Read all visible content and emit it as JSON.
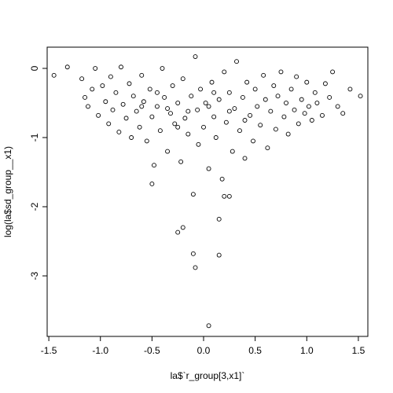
{
  "chart_data": {
    "type": "scatter",
    "xlabel": "la$`r_group[3,x1]`",
    "ylabel": "log(la$sd_group__x1)",
    "xlim": [
      -1.516,
      1.592
    ],
    "ylim": [
      -3.875,
      0.307
    ],
    "xticks": [
      -1.5,
      {
        "value": -1,
        "label": "-1.0"
      },
      -0.5,
      {
        "value": 0,
        "label": "0.0"
      },
      0.5,
      {
        "value": 1,
        "label": "1.0"
      },
      1.5
    ],
    "yticks": [
      0,
      -1,
      -2,
      -3
    ],
    "color": "#000000",
    "x": [
      -1.45,
      -1.32,
      -1.18,
      -1.15,
      -1.12,
      -1.08,
      -1.05,
      -1.02,
      -0.98,
      -0.95,
      -0.92,
      -0.9,
      -0.88,
      -0.85,
      -0.82,
      -0.8,
      -0.78,
      -0.75,
      -0.72,
      -0.7,
      -0.68,
      -0.65,
      -0.62,
      -0.6,
      -0.58,
      -0.55,
      -0.52,
      -0.5,
      -0.5,
      -0.48,
      -0.45,
      -0.42,
      -0.4,
      -0.38,
      -0.35,
      -0.32,
      -0.3,
      -0.28,
      -0.25,
      -0.25,
      -0.22,
      -0.2,
      -0.2,
      -0.18,
      -0.15,
      -0.12,
      -0.1,
      -0.1,
      -0.08,
      -0.08,
      -0.06,
      -0.05,
      -0.03,
      0,
      0.02,
      0.05,
      0.05,
      0.08,
      0.1,
      0.12,
      0.15,
      0.15,
      0.15,
      0.18,
      0.2,
      0.2,
      0.22,
      0.25,
      0.25,
      0.28,
      0.3,
      0.32,
      0.35,
      0.38,
      0.4,
      0.42,
      0.45,
      0.48,
      0.5,
      0.52,
      0.55,
      0.58,
      0.6,
      0.62,
      0.65,
      0.68,
      0.7,
      0.72,
      0.75,
      0.78,
      0.8,
      0.82,
      0.85,
      0.88,
      0.9,
      0.92,
      0.95,
      0.98,
      1,
      1.02,
      1.05,
      1.08,
      1.1,
      1.15,
      1.18,
      1.22,
      1.25,
      1.3,
      1.35,
      1.42,
      1.52,
      -0.35,
      -0.15,
      0.05,
      0.25,
      -0.45,
      0.1,
      -0.25,
      0.4,
      -0.6
    ],
    "y": [
      -0.1,
      0.02,
      -0.15,
      -0.42,
      -0.55,
      -0.3,
      0,
      -0.68,
      -0.25,
      -0.48,
      -0.8,
      -0.12,
      -0.6,
      -0.35,
      -0.92,
      0.02,
      -0.52,
      -0.72,
      -0.22,
      -1,
      -0.4,
      -0.62,
      -0.85,
      -0.1,
      -0.48,
      -1.05,
      -0.3,
      -0.7,
      -1.67,
      -1.4,
      -0.55,
      -0.9,
      0,
      -0.42,
      -1.2,
      -0.65,
      -0.25,
      -0.8,
      -2.37,
      -0.5,
      -1.35,
      -2.3,
      -0.15,
      -0.72,
      -0.95,
      -0.4,
      -1.82,
      -2.68,
      -2.88,
      0.17,
      -0.6,
      -1.1,
      -0.3,
      -0.85,
      -0.5,
      -3.72,
      -1.45,
      -0.2,
      -0.7,
      -1,
      -2.7,
      -2.18,
      -0.45,
      -1.6,
      -1.85,
      -0.05,
      -0.78,
      -1.85,
      -0.35,
      -1.2,
      -0.58,
      0.1,
      -0.9,
      -0.42,
      -1.3,
      -0.2,
      -0.68,
      -1.05,
      -0.3,
      -0.55,
      -0.82,
      -0.1,
      -0.45,
      -1.15,
      -0.62,
      -0.25,
      -0.88,
      -0.4,
      -0.05,
      -0.7,
      -0.5,
      -0.95,
      -0.3,
      -0.6,
      -0.12,
      -0.8,
      -0.45,
      -0.65,
      -0.2,
      -0.55,
      -0.75,
      -0.35,
      -0.5,
      -0.68,
      -0.22,
      -0.42,
      -0.05,
      -0.55,
      -0.65,
      -0.3,
      -0.4,
      -0.58,
      -0.62,
      -0.55,
      -0.62,
      -0.35,
      -0.35,
      -0.85,
      -0.75,
      -0.55
    ]
  }
}
